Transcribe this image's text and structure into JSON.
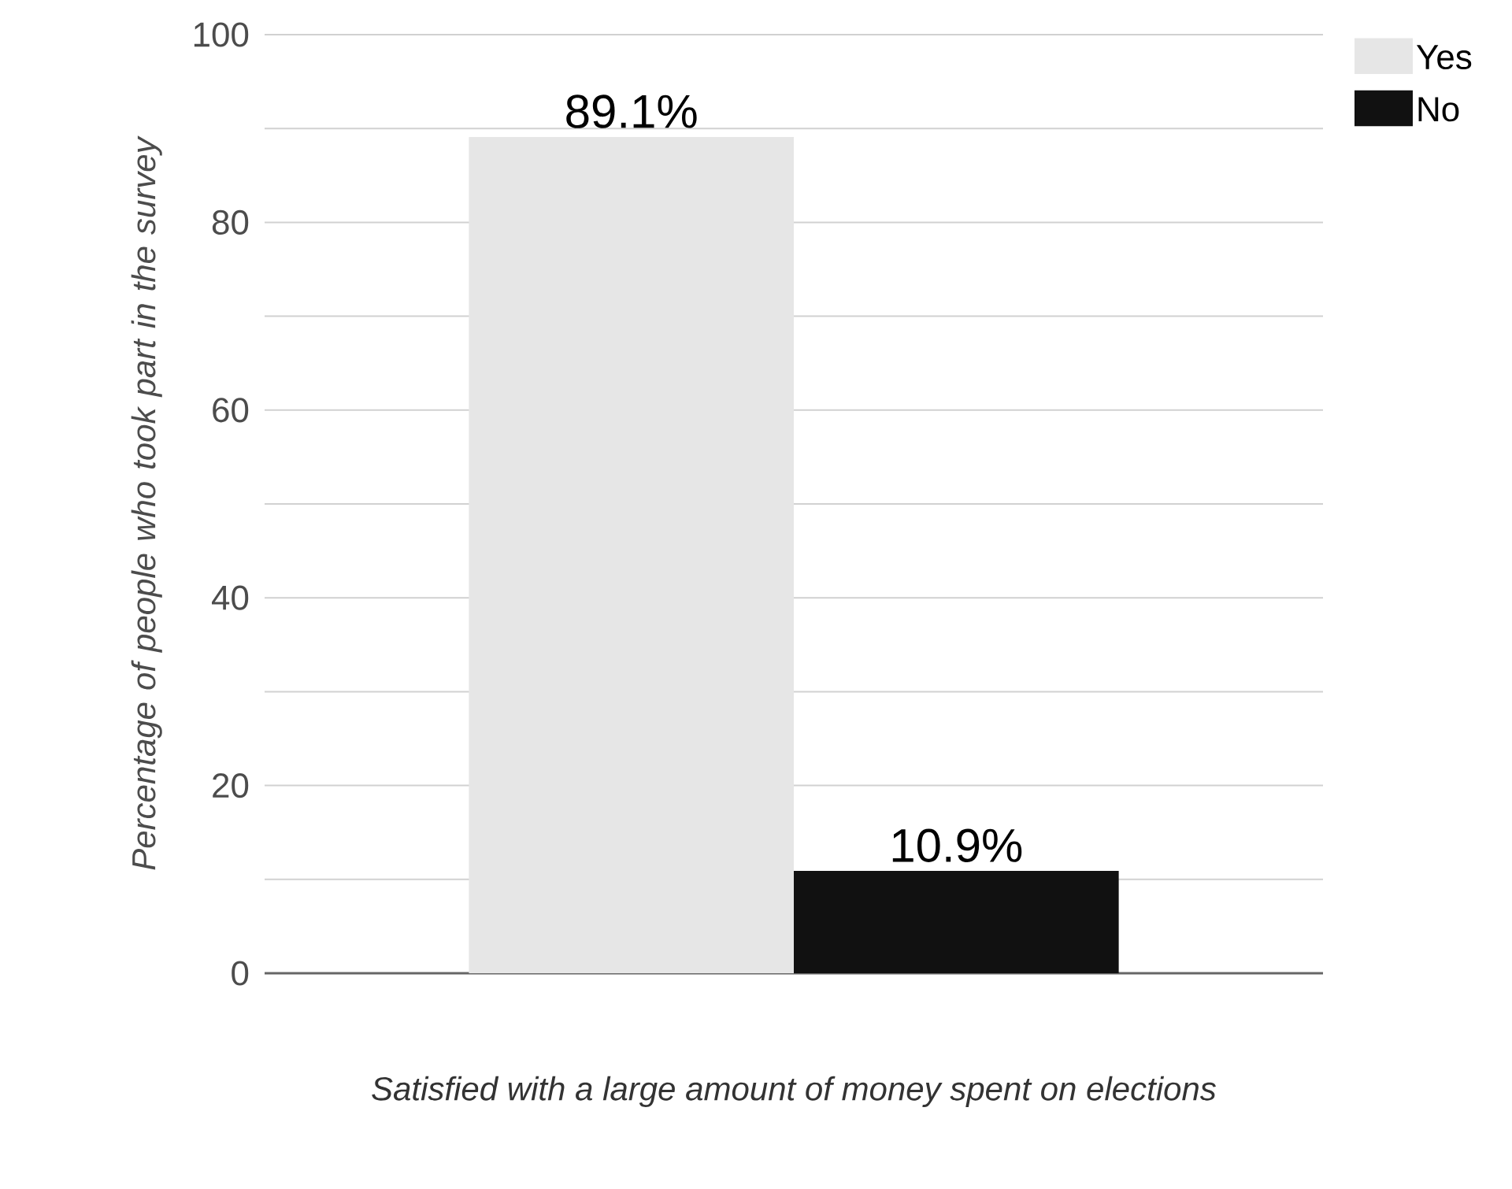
{
  "chart_data": {
    "type": "bar",
    "categories": [
      null
    ],
    "series": [
      {
        "name": "Yes",
        "color": "#e6e6e6",
        "values": [
          89.1
        ],
        "value_labels": [
          "89.1%"
        ]
      },
      {
        "name": "No",
        "color": "#111111",
        "values": [
          10.9
        ],
        "value_labels": [
          "10.9%"
        ]
      }
    ],
    "xlabel": "Satisfied with a large amount of money spent on elections",
    "ylabel": "Percentage of people who took part in the survey",
    "ylim": [
      0,
      100
    ],
    "yticks": [
      0,
      {
        "value": 10,
        "label": null
      },
      20,
      {
        "value": 30,
        "label": null
      },
      40,
      {
        "value": 50,
        "label": null
      },
      60,
      {
        "value": 70,
        "label": null
      },
      80,
      {
        "value": 90,
        "label": null
      },
      100
    ],
    "grid": "y",
    "legend": "top right"
  }
}
